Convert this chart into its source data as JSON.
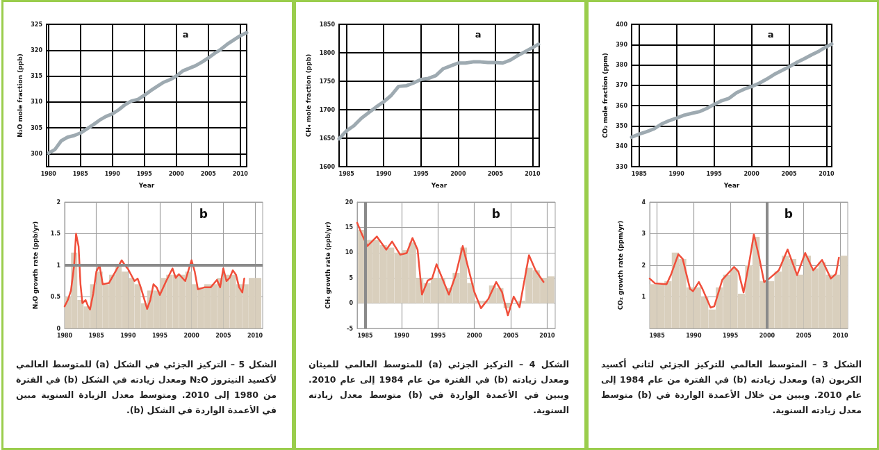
{
  "chart_data": [
    {
      "type": "line",
      "ylabel": "CO₂ mole fraction (ppm)",
      "xlabel": "Year",
      "annotations": [
        "a"
      ],
      "xlim": [
        1984,
        2010.7
      ],
      "xticks": [
        1985,
        1990,
        1995,
        2000,
        2005,
        2010
      ],
      "ylim": [
        330,
        400
      ],
      "yticks": [
        330,
        340,
        350,
        360,
        370,
        380,
        390,
        400
      ],
      "grid": true,
      "series": [
        {
          "color": "#9eaab1",
          "x": [
            1984,
            1985,
            1986,
            1987,
            1988,
            1989,
            1990,
            1991,
            1992,
            1993,
            1994,
            1995,
            1996,
            1997,
            1998,
            1999,
            2000,
            2001,
            2002,
            2003,
            2004,
            2005,
            2006,
            2007,
            2008,
            2009,
            2010,
            2010.7
          ],
          "values": [
            344.5,
            346,
            347.2,
            348.6,
            351,
            352.6,
            353.9,
            355.3,
            356.2,
            357,
            358.6,
            360.6,
            362.4,
            363.6,
            366.4,
            368.1,
            369.4,
            371,
            373,
            375.3,
            377.2,
            379.1,
            381.2,
            383,
            385,
            386.8,
            389,
            390.3
          ]
        }
      ]
    },
    {
      "type": "line",
      "ylabel": "CO₂ growth rate (ppm/yr)",
      "annotations": [
        "b",
        "الشكل 3 – المتوسط العالمي للتركيز الجزئي لثاني أكسيد الكربون (a) ومعدل زيادته (b) في الفترة من عام 1984 إلى عام 2010. ويبين من خلال الأعمدة الواردة في (b) متوسط معدل زيادته السنوية."
      ],
      "xlim": [
        1984,
        2011
      ],
      "xticks": [
        1985,
        1990,
        1995,
        2000,
        2005,
        2010
      ],
      "ylim": [
        0,
        4
      ],
      "yticks": [
        1,
        2,
        3,
        4
      ],
      "grid": true,
      "ref_lines": [
        {
          "axis": "x",
          "value": 2000,
          "color": "#8a8a8a"
        }
      ],
      "series": [
        {
          "type": "bar",
          "color": "#d9cfbd",
          "x": [
            1984.5,
            1985.5,
            1986.5,
            1987.5,
            1988.5,
            1989.5,
            1990.5,
            1991.5,
            1992.5,
            1993.5,
            1994.5,
            1995.5,
            1996.5,
            1997.5,
            1998.5,
            1999.5,
            2000.5,
            2001.5,
            2002.5,
            2003.5,
            2004.5,
            2005.5,
            2006.5,
            2007.5,
            2008.5,
            2009.5,
            2010.5
          ],
          "values": [
            1.4,
            1.4,
            1.5,
            2.4,
            2.2,
            1.3,
            1.3,
            1.0,
            0.6,
            1.3,
            1.7,
            1.9,
            1.1,
            2.0,
            2.9,
            1.5,
            1.5,
            1.8,
            2.3,
            2.2,
            1.7,
            2.3,
            1.9,
            2.1,
            1.7,
            1.7,
            2.3
          ]
        },
        {
          "color": "#f04e3a",
          "x": [
            1984,
            1984.7,
            1986.3,
            1986.9,
            1987.9,
            1988.5,
            1989.5,
            1989.9,
            1990.7,
            1991.2,
            1992.3,
            1992.8,
            1993.9,
            1995.5,
            1996.1,
            1996.8,
            1997.6,
            1998.2,
            1998.9,
            1999.6,
            2000.3,
            2001.6,
            2002.8,
            2004.1,
            2005.2,
            2006.3,
            2007.5,
            2008.7,
            2009.4,
            2009.8
          ],
          "values": [
            1.58,
            1.43,
            1.4,
            1.7,
            2.35,
            2.2,
            1.25,
            1.18,
            1.47,
            1.25,
            0.66,
            0.7,
            1.54,
            1.95,
            1.8,
            1.14,
            2.13,
            2.98,
            2.28,
            1.47,
            1.58,
            1.84,
            2.5,
            1.69,
            2.39,
            1.84,
            2.17,
            1.58,
            1.73,
            2.24
          ]
        }
      ]
    },
    {
      "type": "line",
      "ylabel": "CH₄ mole fraction (ppb)",
      "xlabel": "Year",
      "annotations": [
        "a"
      ],
      "xlim": [
        1984,
        2010.9
      ],
      "xticks": [
        1985,
        1990,
        1995,
        2000,
        2005,
        2010
      ],
      "ylim": [
        1600,
        1850
      ],
      "yticks": [
        1600,
        1650,
        1700,
        1750,
        1800,
        1850
      ],
      "grid": true,
      "series": [
        {
          "color": "#9eaab1",
          "x": [
            1984,
            1985,
            1986,
            1987,
            1988,
            1989,
            1990,
            1991,
            1992,
            1993,
            1994,
            1995,
            1996,
            1997,
            1998,
            1999,
            2000,
            2001,
            2002,
            2003,
            2004,
            2005,
            2006,
            2007,
            2008,
            2009,
            2010,
            2010.8
          ],
          "values": [
            1649,
            1663,
            1672,
            1685,
            1695,
            1705,
            1714,
            1725,
            1741,
            1742,
            1747,
            1753,
            1755,
            1760,
            1772,
            1777,
            1782,
            1782,
            1784,
            1784,
            1783,
            1783,
            1782,
            1787,
            1795,
            1802,
            1809,
            1815
          ]
        }
      ]
    },
    {
      "type": "line",
      "ylabel": "CH₄ growth rate (ppb/yr)",
      "annotations": [
        "b",
        "الشكل 4 – التركيز الجزئي (a) للمتوسط العالمي للميثان ومعدل زيادته (b) في الفترة من عام 1984 إلى عام 2010. ويبين في الأعمدة الواردة في (b) متوسط معدل زيادته السنوية."
      ],
      "xlim": [
        1983.9,
        2011.1
      ],
      "xticks": [
        1985,
        1990,
        1995,
        2000,
        2005,
        2010
      ],
      "ylim": [
        -5,
        20
      ],
      "yticks": [
        -5,
        0,
        5,
        10,
        15,
        20
      ],
      "grid": true,
      "ref_lines": [
        {
          "axis": "x",
          "value": 1985,
          "color": "#8a8a8a"
        }
      ],
      "series": [
        {
          "type": "bar",
          "color": "#d9cfbd",
          "x": [
            1984.5,
            1985.5,
            1986.5,
            1987.5,
            1988.5,
            1989.5,
            1990.5,
            1991.5,
            1992.5,
            1993.5,
            1994.5,
            1995.5,
            1996.5,
            1997.5,
            1998.5,
            1999.5,
            2000.5,
            2001.5,
            2002.5,
            2003.5,
            2004.5,
            2005.5,
            2006.5,
            2007.5,
            2008.5,
            2009.5,
            2010.5
          ],
          "values": [
            14.5,
            12.5,
            12.5,
            11.5,
            11,
            10,
            10.5,
            12,
            5,
            4,
            5,
            5,
            3,
            6,
            11,
            4,
            0.5,
            0.5,
            3.5,
            3,
            -1,
            null,
            0.5,
            7,
            6.5,
            5,
            5.3
          ]
        },
        {
          "color": "#f04e3a",
          "x": [
            1983.9,
            1984.5,
            1985.3,
            1986.6,
            1987.9,
            1988.7,
            1989.8,
            1990.7,
            1991.5,
            1992.2,
            1992.8,
            1993.6,
            1994.2,
            1994.8,
            1996.5,
            1997.4,
            1998.4,
            2000,
            2000.9,
            2001.9,
            2003,
            2003.8,
            2004.6,
            2005.4,
            2006.2,
            2007.5,
            2008.4,
            2009.5
          ],
          "values": [
            15.9,
            13.8,
            11.3,
            13.2,
            10.6,
            12.2,
            9.6,
            9.9,
            12.9,
            10.6,
            1.7,
            4.5,
            4.9,
            7.7,
            1.7,
            5.4,
            11.3,
            2.2,
            -1.0,
            0.8,
            4.2,
            2.2,
            -2.4,
            1.3,
            -0.8,
            9.5,
            6.5,
            4.2
          ]
        }
      ]
    },
    {
      "type": "line",
      "ylabel": "N₂O mole fraction (ppb)",
      "xlabel": "Year",
      "annotations": [
        "a"
      ],
      "xlim": [
        1979.7,
        2011
      ],
      "xticks": [
        1980,
        1985,
        1990,
        1995,
        2000,
        2005,
        2010
      ],
      "ylim": [
        297.5,
        325
      ],
      "yticks": [
        300,
        305,
        310,
        315,
        320,
        325
      ],
      "grid": true,
      "series": [
        {
          "color": "#9eaab1",
          "x": [
            1980,
            1981,
            1982,
            1983,
            1984,
            1985,
            1986,
            1987,
            1988,
            1989,
            1990,
            1991,
            1992,
            1993,
            1994,
            1995,
            1996,
            1997,
            1998,
            1999,
            2000,
            2001,
            2002,
            2003,
            2004,
            2005,
            2006,
            2007,
            2008,
            2009,
            2010,
            2011
          ],
          "values": [
            300.1,
            300.8,
            302.5,
            303.2,
            303.5,
            304,
            304.8,
            305.6,
            306.5,
            307.2,
            307.7,
            308.5,
            309.5,
            310.2,
            310.5,
            311.3,
            312.2,
            313,
            313.8,
            314.3,
            315,
            316,
            316.5,
            317,
            317.7,
            318.5,
            319.4,
            320.2,
            321.2,
            322,
            322.8,
            323.4
          ]
        }
      ]
    },
    {
      "type": "line",
      "ylabel": "N₂O growth rate (ppb/yr)",
      "annotations": [
        "b",
        "الشكل 5 – التركيز الجزئي في الشكل (a) للمتوسط العالمي لأكسيد النيتروز N₂O ومعدل زيادته في الشكل (b) في الفترة من 1980 إلى 2010. ومتوسط معدل الزيادة السنوية مبين في الأعمدة الواردة في الشكل (b)."
      ],
      "xlim": [
        1980,
        2011.2
      ],
      "xticks": [
        1980,
        1985,
        1990,
        1995,
        2000,
        2005,
        2010
      ],
      "ylim": [
        0,
        2
      ],
      "yticks": [
        0,
        0.5,
        1,
        1.5,
        2
      ],
      "grid": true,
      "ref_lines": [
        {
          "axis": "y",
          "value": 1,
          "color": "#8a8a8a"
        }
      ],
      "series": [
        {
          "type": "bar",
          "color": "#d9cfbd",
          "x": [
            1980.5,
            1981.5,
            1982.5,
            1983.5,
            1984.5,
            1985.5,
            1986.5,
            1987.5,
            1988.5,
            1989.5,
            1990.5,
            1991.5,
            1992.5,
            1993.5,
            1994.5,
            1995.5,
            1996.5,
            1997.5,
            1998.5,
            1999.5,
            2000.5,
            2001.5,
            2002.5,
            2003.5,
            2004.5,
            2005.5,
            2006.5,
            2007.5,
            2008.5,
            2009.5,
            2010.5
          ],
          "values": [
            0.5,
            1.2,
            0.45,
            0.35,
            0.7,
            0.9,
            0.7,
            0.85,
            1.0,
            0.9,
            0.8,
            0.7,
            0.4,
            0.6,
            0.6,
            0.8,
            0.85,
            0.85,
            0.85,
            0.9,
            0.7,
            0.65,
            0.7,
            0.7,
            0.8,
            0.85,
            0.85,
            0.7,
            0.7,
            0.8,
            0.8
          ]
        },
        {
          "color": "#f04e3a",
          "x": [
            1980,
            1980.5,
            1981,
            1981.5,
            1981.8,
            1982.2,
            1982.5,
            1982.8,
            1983.3,
            1983.7,
            1984,
            1984.5,
            1985,
            1985.5,
            1986,
            1987,
            1988,
            1989,
            1989.5,
            1990,
            1991,
            1991.5,
            1992,
            1993,
            1993.5,
            1994,
            1994.5,
            1995,
            1996,
            1997,
            1997.5,
            1998,
            1999,
            2000,
            2000.5,
            2001,
            2002,
            2003,
            2004,
            2004.5,
            2005,
            2005.5,
            2006,
            2006.5,
            2007,
            2007.5,
            2008,
            2008.3
          ],
          "values": [
            0.35,
            0.45,
            0.6,
            1.0,
            1.5,
            1.3,
            0.7,
            0.4,
            0.45,
            0.35,
            0.3,
            0.55,
            0.9,
            1.0,
            0.7,
            0.72,
            0.9,
            1.08,
            1.0,
            0.94,
            0.75,
            0.79,
            0.65,
            0.31,
            0.45,
            0.7,
            0.65,
            0.53,
            0.75,
            0.95,
            0.8,
            0.86,
            0.75,
            1.08,
            0.9,
            0.62,
            0.65,
            0.65,
            0.77,
            0.65,
            0.95,
            0.75,
            0.8,
            0.92,
            0.85,
            0.65,
            0.57,
            0.79
          ]
        }
      ]
    }
  ]
}
